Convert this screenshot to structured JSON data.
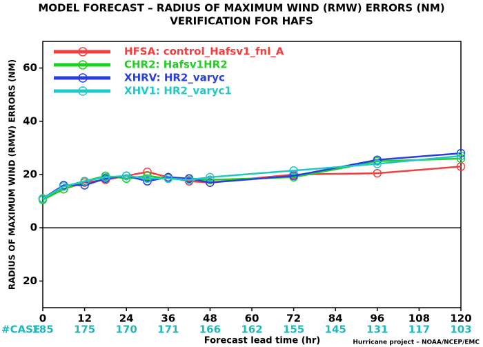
{
  "chart_data": {
    "type": "line",
    "title": "MODEL FORECAST – RADIUS OF MAXIMUM WIND (RMW) ERRORS (NM)",
    "subtitle": "VERIFICATION FOR HAFS",
    "x_label": "Forecast lead time (hr)",
    "y_label": "RADIUS OF MAXIMUM WIND (RMW) ERRORS (NM)",
    "x": [
      0,
      6,
      12,
      18,
      24,
      30,
      36,
      42,
      48,
      72,
      96,
      120
    ],
    "series": [
      {
        "name": "HFSA: control_Hafsv1_fnl_A",
        "color": "#f04040",
        "values": [
          11,
          14.5,
          17,
          18,
          19.5,
          21,
          19,
          17.5,
          17,
          20,
          20.5,
          23
        ]
      },
      {
        "name": "CHR2: Hafsv1HR2",
        "color": "#20d020",
        "values": [
          10.5,
          14.5,
          17.5,
          19.5,
          18.5,
          19.5,
          18.5,
          18.5,
          18,
          19,
          25,
          26
        ]
      },
      {
        "name": "XHRV: HR2_varyc",
        "color": "#2a3ee0",
        "values": [
          11,
          16,
          16,
          18.5,
          19.5,
          17.5,
          19,
          18.5,
          17,
          19.5,
          25.5,
          28
        ]
      },
      {
        "name": "XHV1: HR2_varyc1",
        "color": "#20c8c8",
        "values": [
          11,
          15.5,
          17.5,
          19,
          19.5,
          18.5,
          18.5,
          18,
          19,
          21.5,
          24,
          27
        ]
      }
    ],
    "xlim": [
      0,
      120
    ],
    "xticks": [
      0,
      12,
      24,
      36,
      48,
      60,
      72,
      84,
      96,
      108,
      120
    ],
    "ylim": [
      -30,
      70
    ],
    "yticks": [
      {
        "value": -20,
        "label": "20"
      },
      0,
      20,
      40,
      60
    ],
    "case_label": "#CASE",
    "case_x": [
      0,
      12,
      24,
      36,
      48,
      60,
      72,
      84,
      96,
      108,
      120
    ],
    "case_counts": [
      185,
      175,
      170,
      171,
      166,
      162,
      155,
      145,
      131,
      117,
      103
    ],
    "case_color": "#20b8b8",
    "zero_line": true,
    "legend": "upper left",
    "footer": "Hurricane project – NOAA/NCEP/EMC"
  }
}
